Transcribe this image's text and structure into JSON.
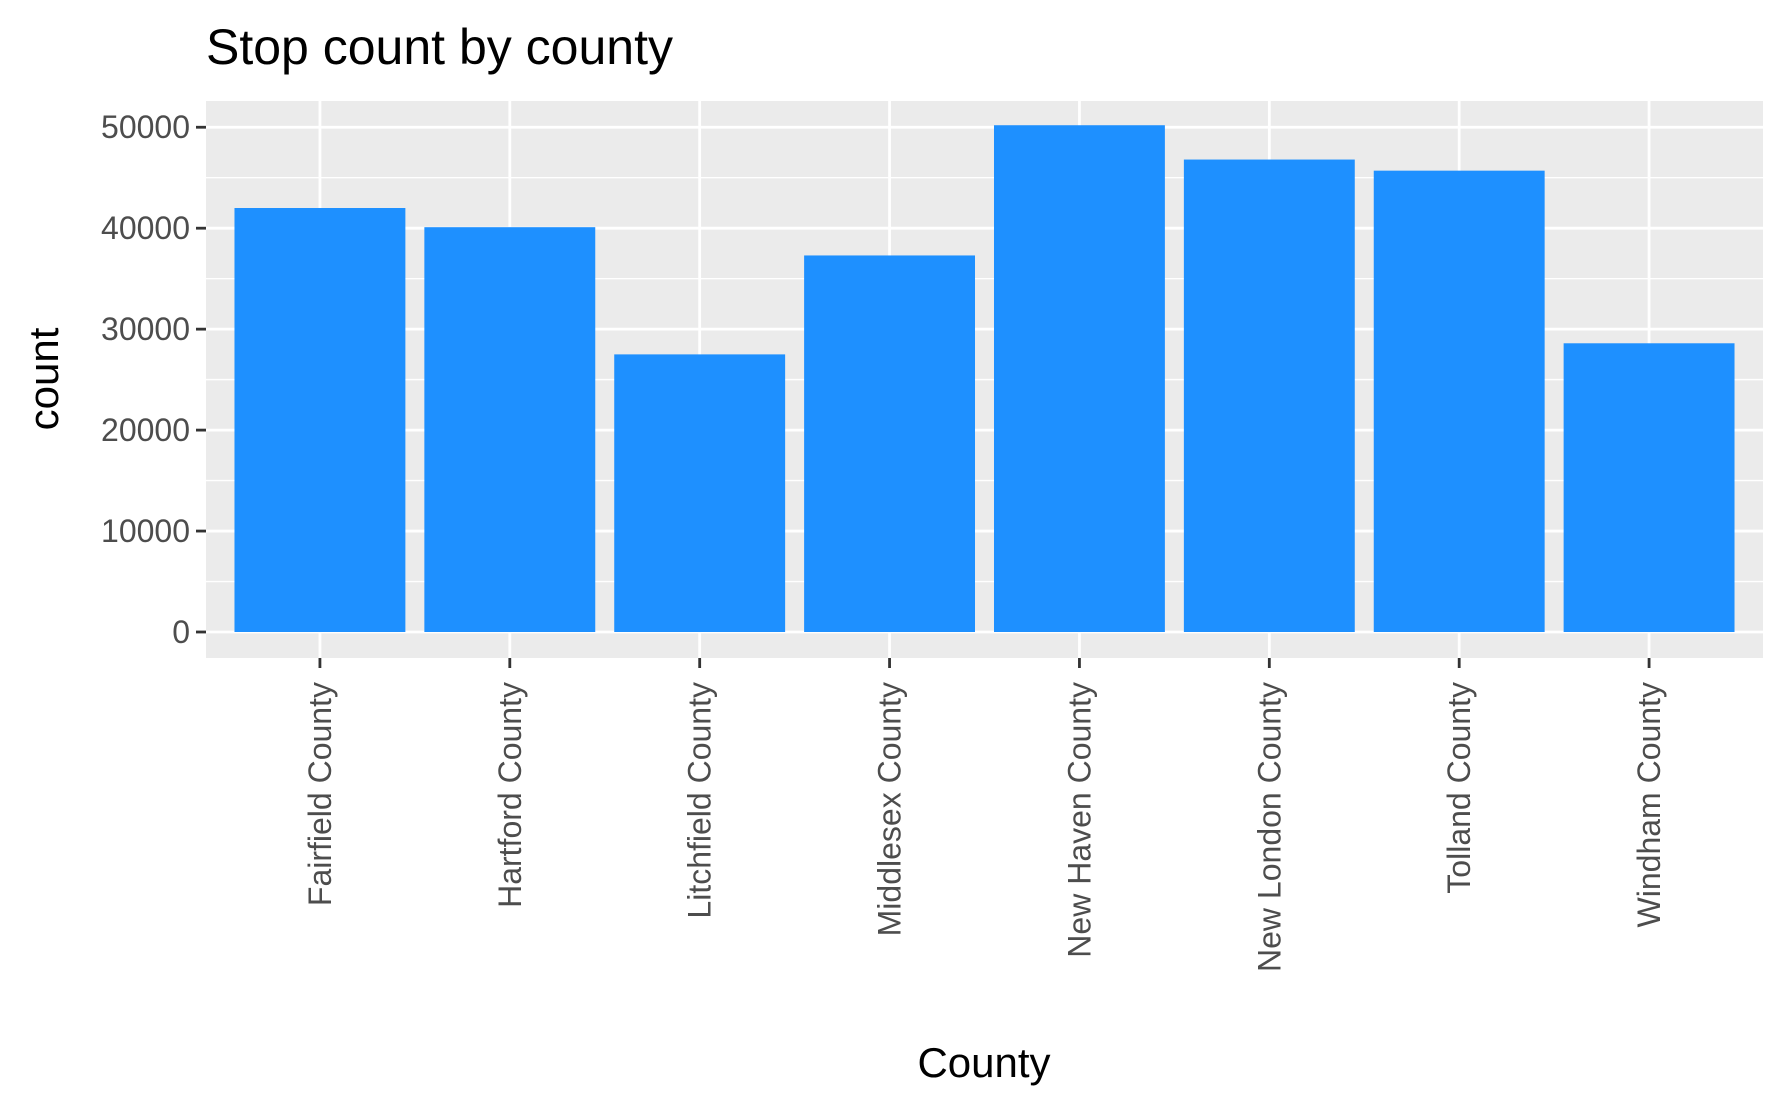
{
  "chart_data": {
    "type": "bar",
    "title": "Stop count by county",
    "xlabel": "County",
    "ylabel": "count",
    "categories": [
      "Fairfield County",
      "Hartford County",
      "Litchfield County",
      "Middlesex County",
      "New Haven County",
      "New London County",
      "Tolland County",
      "Windham County"
    ],
    "values": [
      42000,
      40100,
      27500,
      37300,
      50200,
      46800,
      45700,
      28600
    ],
    "ylim": [
      0,
      52600
    ],
    "yticks": [
      0,
      10000,
      20000,
      30000,
      40000,
      50000
    ],
    "ytick_labels": [
      "0",
      "10000",
      "20000",
      "30000",
      "40000",
      "50000"
    ],
    "grid": true,
    "legend": "none",
    "colors": {
      "bar": "#1E90FF",
      "panel": "#EBEBEB",
      "grid": "#FFFFFF",
      "tick_label": "#4D4D4D"
    }
  }
}
